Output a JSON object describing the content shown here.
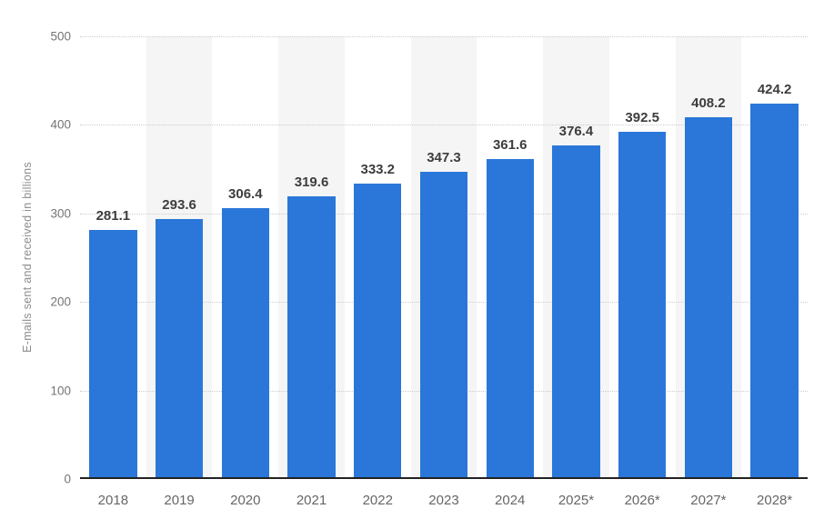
{
  "chart_data": {
    "type": "bar",
    "categories": [
      "2018",
      "2019",
      "2020",
      "2021",
      "2022",
      "2023",
      "2024",
      "2025*",
      "2026*",
      "2027*",
      "2028*"
    ],
    "values": [
      281.1,
      293.6,
      306.4,
      319.6,
      333.2,
      347.3,
      361.6,
      376.4,
      392.5,
      408.2,
      424.2
    ],
    "title": "",
    "xlabel": "",
    "ylabel": "E-mails sent and received in billions",
    "ylim": [
      0,
      500
    ],
    "yticks": [
      0,
      100,
      200,
      300,
      400,
      500
    ],
    "grid": "horizontal-dotted",
    "legend": "none",
    "value_labels": true,
    "striped_columns": "alternating light-gray stripes behind odd-index columns"
  },
  "style": {
    "bar_color": "#2a77d9",
    "stripe_color": "#f5f5f5",
    "gridline_color": "#cccccc",
    "axis_line_color": "#222222",
    "value_label_color": "#3d3d3d",
    "tick_label_color": "#666666",
    "y_axis_title_color": "#8c8c8c",
    "background_color": "#ffffff"
  }
}
